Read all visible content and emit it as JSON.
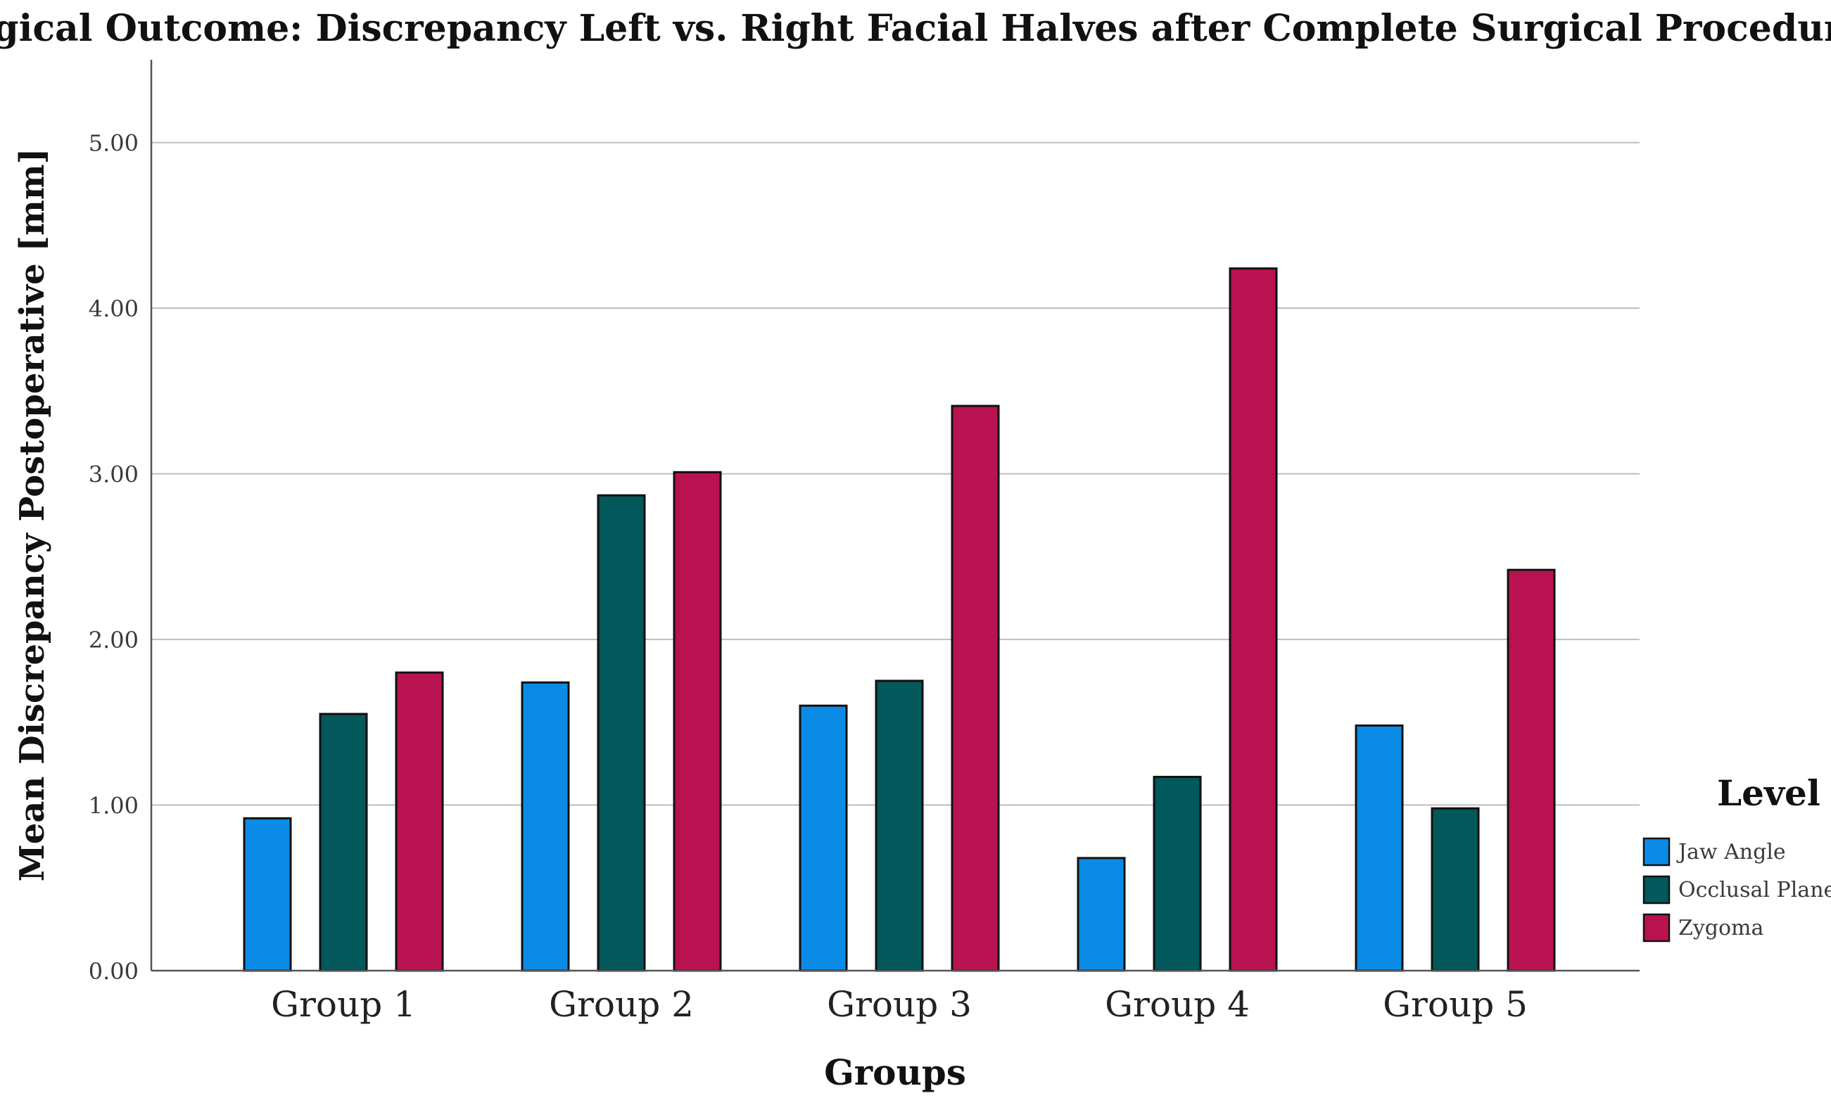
{
  "chart_data": {
    "type": "bar",
    "title": "Surgical Outcome: Discrepancy Left vs. Right Facial Halves after Complete Surgical Procedure",
    "xlabel": "Groups",
    "ylabel": "Mean Discrepancy Postoperative [mm]",
    "categories": [
      "Group 1",
      "Group 2",
      "Group 3",
      "Group 4",
      "Group 5"
    ],
    "series": [
      {
        "name": "Jaw Angle",
        "color": "#0a8ce6",
        "values": [
          0.92,
          1.74,
          1.6,
          0.68,
          1.48
        ]
      },
      {
        "name": "Occlusal Plane",
        "color": "#02585a",
        "values": [
          1.55,
          2.87,
          1.75,
          1.17,
          0.98
        ]
      },
      {
        "name": "Zygoma",
        "color": "#b81350",
        "values": [
          1.8,
          3.01,
          3.41,
          4.24,
          2.42
        ]
      }
    ],
    "ylim": [
      0,
      5.5
    ],
    "yticks": [
      0,
      1,
      2,
      3,
      4,
      5
    ],
    "ytick_labels": [
      "0.00",
      "1.00",
      "2.00",
      "3.00",
      "4.00",
      "5.00"
    ],
    "grid": true,
    "legend_title": "Level",
    "legend_position": "right"
  }
}
